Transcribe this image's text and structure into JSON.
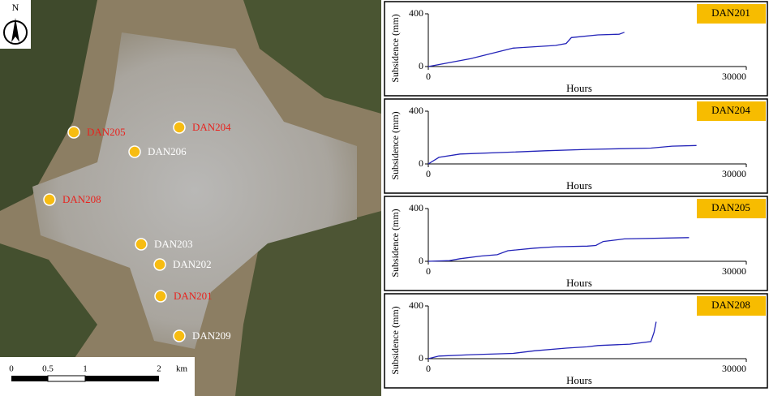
{
  "map": {
    "north": "N",
    "scale_labels": [
      "0",
      "0.5",
      "1",
      "2",
      "km"
    ],
    "markers": [
      {
        "label": "DAN205",
        "color": "#e8231e"
      },
      {
        "label": "DAN204",
        "color": "#e8231e"
      },
      {
        "label": "DAN206",
        "color": "#ffffff"
      },
      {
        "label": "DAN208",
        "color": "#e8231e"
      },
      {
        "label": "DAN203",
        "color": "#ffffff"
      },
      {
        "label": "DAN202",
        "color": "#ffffff"
      },
      {
        "label": "DAN201",
        "color": "#e8231e"
      },
      {
        "label": "DAN209",
        "color": "#ffffff"
      }
    ]
  },
  "chart_data": [
    {
      "type": "line",
      "title": "DAN201",
      "xlabel": "Hours",
      "ylabel": "Subsidence (mm)",
      "x": [
        0,
        2000,
        4000,
        6000,
        8000,
        12000,
        13000,
        13500,
        16000,
        18000,
        18500
      ],
      "series": [
        {
          "name": "DAN201",
          "color": "#2323b8",
          "values": [
            0,
            30,
            60,
            100,
            140,
            160,
            175,
            220,
            240,
            245,
            260
          ]
        }
      ],
      "xlim": [
        0,
        30000
      ],
      "xticks": [
        0,
        30000
      ],
      "ylim": [
        0,
        400
      ],
      "yticks": [
        0,
        400
      ]
    },
    {
      "type": "line",
      "title": "DAN204",
      "xlabel": "Hours",
      "ylabel": "Subsidence (mm)",
      "x": [
        0,
        1000,
        3000,
        8000,
        11000,
        15000,
        21000,
        23000,
        25300
      ],
      "series": [
        {
          "name": "DAN204",
          "color": "#2323b8",
          "values": [
            0,
            50,
            75,
            90,
            100,
            110,
            120,
            135,
            140
          ]
        }
      ],
      "xlim": [
        0,
        30000
      ],
      "xticks": [
        0,
        30000
      ],
      "ylim": [
        0,
        400
      ],
      "yticks": [
        0,
        400
      ]
    },
    {
      "type": "line",
      "title": "DAN205",
      "xlabel": "Hours",
      "ylabel": "Subsidence (mm)",
      "x": [
        0,
        2000,
        3000,
        5000,
        6500,
        7500,
        10000,
        12000,
        15000,
        15800,
        16500,
        18500,
        24600
      ],
      "series": [
        {
          "name": "DAN205",
          "color": "#2323b8",
          "values": [
            0,
            5,
            20,
            40,
            50,
            80,
            100,
            110,
            115,
            120,
            150,
            170,
            180
          ]
        }
      ],
      "xlim": [
        0,
        30000
      ],
      "xticks": [
        0,
        30000
      ],
      "ylim": [
        0,
        400
      ],
      "yticks": [
        0,
        400
      ]
    },
    {
      "type": "line",
      "title": "DAN208",
      "xlabel": "Hours",
      "ylabel": "Subsidence (mm)",
      "x": [
        0,
        1000,
        4000,
        8000,
        10000,
        13000,
        15000,
        16000,
        19000,
        21000,
        21300,
        21500
      ],
      "series": [
        {
          "name": "DAN208",
          "color": "#2323b8",
          "values": [
            0,
            20,
            30,
            40,
            60,
            80,
            90,
            100,
            110,
            130,
            200,
            280
          ]
        }
      ],
      "xlim": [
        0,
        30000
      ],
      "xticks": [
        0,
        30000
      ],
      "ylim": [
        0,
        400
      ],
      "yticks": [
        0,
        400
      ]
    }
  ]
}
